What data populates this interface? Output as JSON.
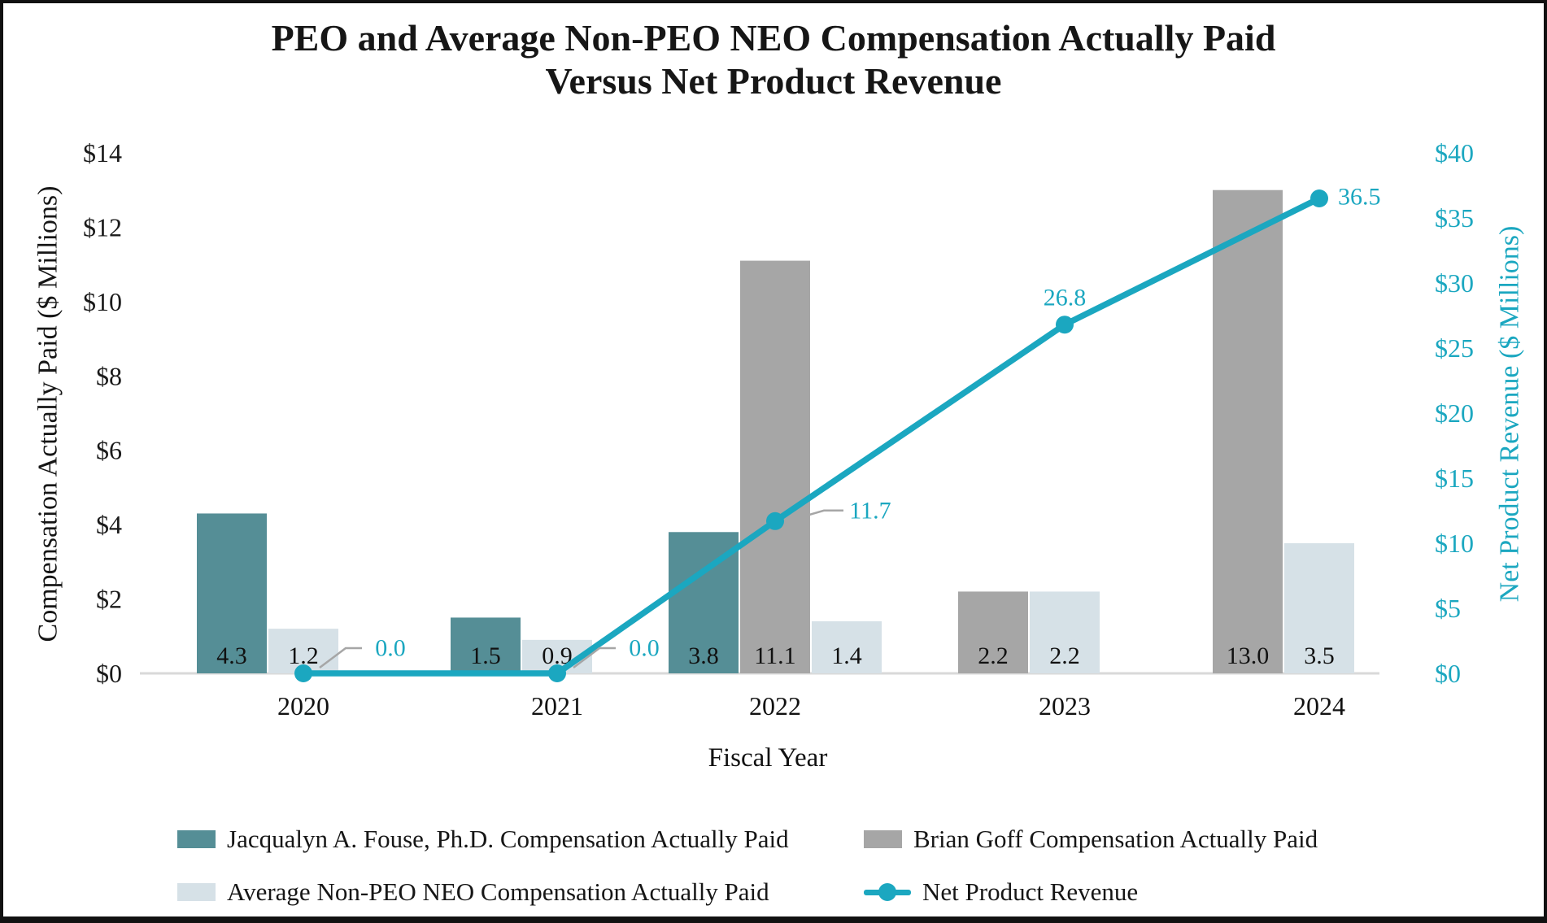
{
  "title": {
    "line1": "PEO and Average Non-PEO NEO Compensation Actually Paid",
    "line2": "Versus Net Product Revenue"
  },
  "chart_data": {
    "type": "bar+line",
    "categories": [
      "2020",
      "2021",
      "2022",
      "2023",
      "2024"
    ],
    "xlabel": "Fiscal Year",
    "ylabel_left": "Compensation Actually Paid ($ Millions)",
    "ylabel_right": "Net Product Revenue ($ Millions)",
    "y_left": {
      "min": 0,
      "max": 14,
      "step": 2,
      "prefix": "$"
    },
    "y_right": {
      "min": 0,
      "max": 40,
      "step": 5,
      "prefix": "$"
    },
    "grid": "off",
    "legend_position": "bottom",
    "colors": {
      "fouse": "#558E96",
      "goff": "#A6A6A6",
      "avg_neo": "#D6E1E7",
      "revenue": "#1BA7C0",
      "leader": "#A6A6A6",
      "baseline": "#D9D9D9"
    },
    "series": [
      {
        "name": "Jacqualyn A. Fouse, Ph.D. Compensation Actually Paid",
        "type": "bar",
        "color": "#558E96",
        "values": [
          4.3,
          1.5,
          3.8,
          null,
          null
        ]
      },
      {
        "name": "Brian Goff Compensation Actually Paid",
        "type": "bar",
        "color": "#A6A6A6",
        "values": [
          null,
          null,
          11.1,
          2.2,
          13.0
        ]
      },
      {
        "name": "Average Non-PEO NEO Compensation Actually Paid",
        "type": "bar",
        "color": "#D6E1E7",
        "values": [
          1.2,
          0.9,
          1.4,
          2.2,
          3.5
        ]
      },
      {
        "name": "Net Product Revenue",
        "type": "line",
        "color": "#1BA7C0",
        "values": [
          0.0,
          0.0,
          11.7,
          26.8,
          36.5
        ]
      }
    ],
    "groups": [
      {
        "category": "2020",
        "bars": [
          {
            "series": 0,
            "value": 4.3,
            "label": "4.3"
          },
          {
            "series": 2,
            "value": 1.2,
            "label": "1.2"
          }
        ]
      },
      {
        "category": "2021",
        "bars": [
          {
            "series": 0,
            "value": 1.5,
            "label": "1.5"
          },
          {
            "series": 2,
            "value": 0.9,
            "label": "0.9"
          }
        ]
      },
      {
        "category": "2022",
        "bars": [
          {
            "series": 0,
            "value": 3.8,
            "label": "3.8"
          },
          {
            "series": 1,
            "value": 11.1,
            "label": "11.1"
          },
          {
            "series": 2,
            "value": 1.4,
            "label": "1.4"
          }
        ]
      },
      {
        "category": "2023",
        "bars": [
          {
            "series": 1,
            "value": 2.2,
            "label": "2.2"
          },
          {
            "series": 2,
            "value": 2.2,
            "label": "2.2"
          }
        ]
      },
      {
        "category": "2024",
        "bars": [
          {
            "series": 1,
            "value": 13.0,
            "label": "13.0"
          },
          {
            "series": 2,
            "value": 3.5,
            "label": "3.5"
          }
        ]
      }
    ],
    "line_labels": [
      "0.0",
      "0.0",
      "11.7",
      "26.8",
      "36.5"
    ]
  },
  "legend": {
    "items": [
      {
        "series": 0,
        "marker": "swatch"
      },
      {
        "series": 1,
        "marker": "swatch"
      },
      {
        "series": 2,
        "marker": "swatch"
      },
      {
        "series": 3,
        "marker": "line"
      }
    ]
  }
}
